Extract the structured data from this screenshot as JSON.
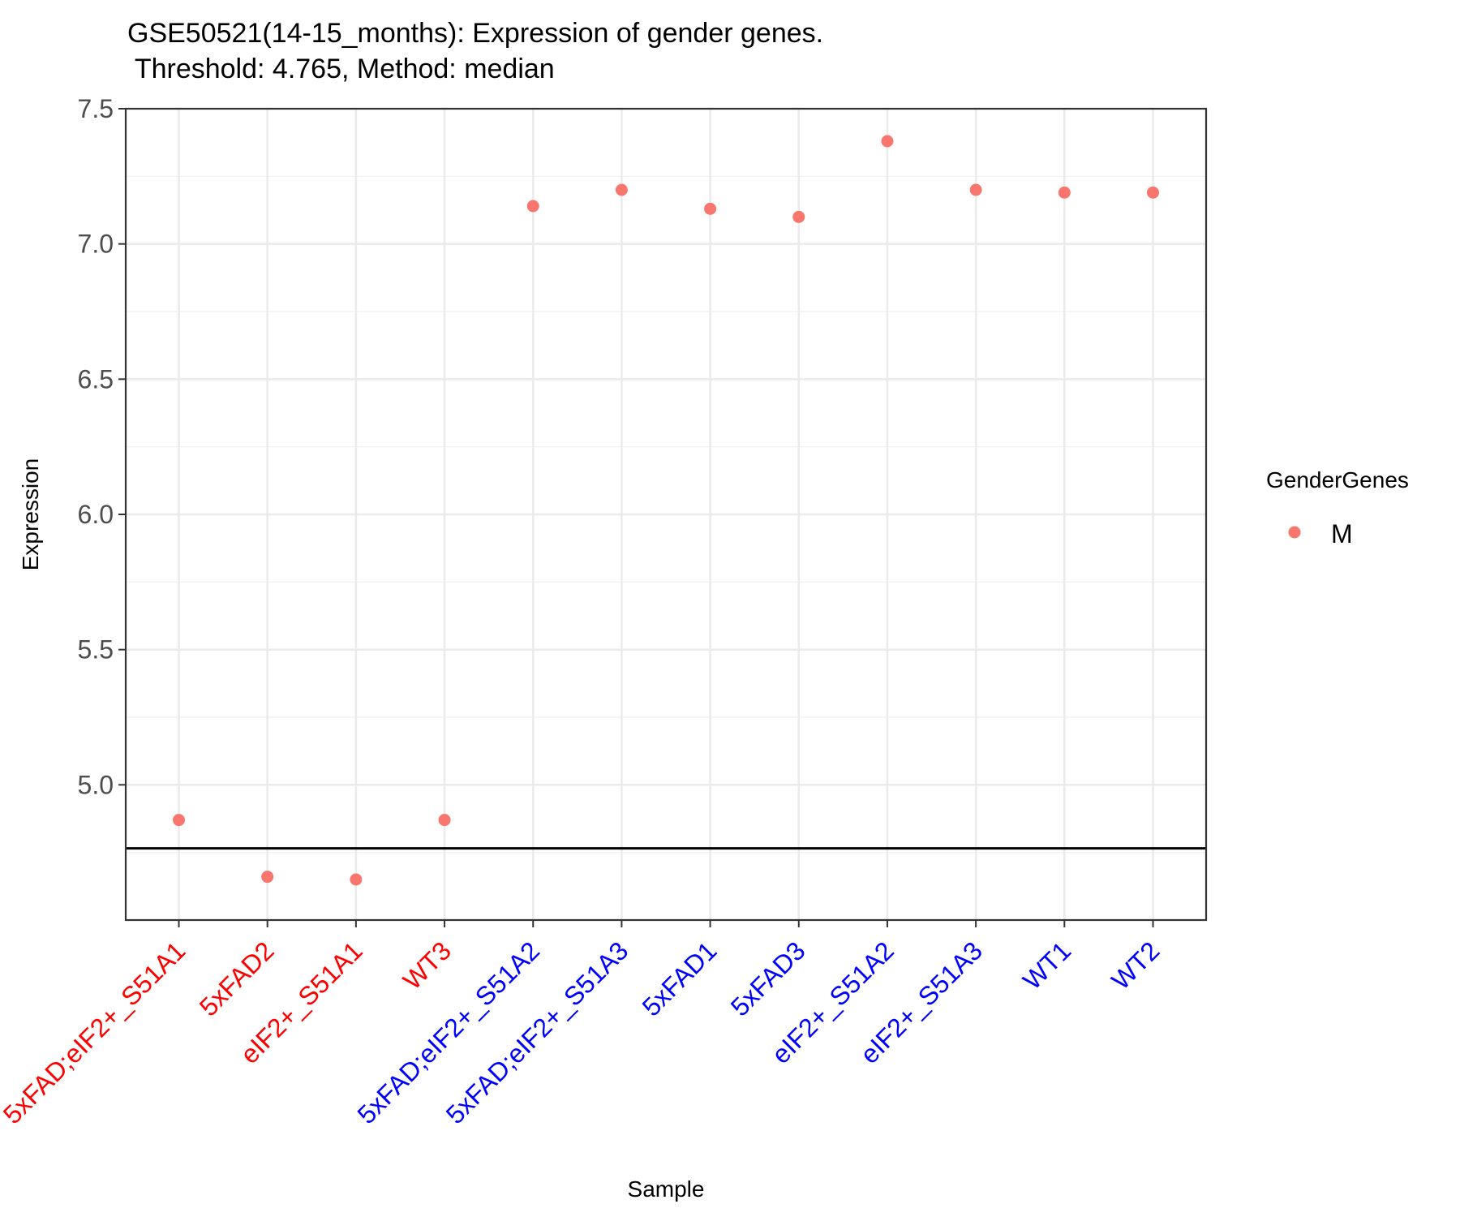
{
  "chart_data": {
    "type": "scatter",
    "title": "GSE50521(14-15_months): Expression of gender genes.",
    "subtitle": " Threshold: 4.765, Method: median",
    "xlabel": "Sample",
    "ylabel": "Expression",
    "ylim": [
      4.5,
      7.5
    ],
    "yticks": [
      "5.0",
      "5.5",
      "6.0",
      "6.5",
      "7.0",
      "7.5"
    ],
    "grid": true,
    "threshold": 4.765,
    "legend": {
      "title": "GenderGenes",
      "placement": "right",
      "entries": [
        {
          "label": "M",
          "color": "#F8766D"
        }
      ]
    },
    "categories": [
      "5xFAD;eIF2+_S51A1",
      "5xFAD2",
      "eIF2+_S51A1",
      "WT3",
      "5xFAD;eIF2+_S51A2",
      "5xFAD;eIF2+_S51A3",
      "5xFAD1",
      "5xFAD3",
      "eIF2+_S51A2",
      "eIF2+_S51A3",
      "WT1",
      "WT2"
    ],
    "category_colors": [
      "#FF0000",
      "#FF0000",
      "#FF0000",
      "#FF0000",
      "#0000FF",
      "#0000FF",
      "#0000FF",
      "#0000FF",
      "#0000FF",
      "#0000FF",
      "#0000FF",
      "#0000FF"
    ],
    "series": [
      {
        "name": "M",
        "color": "#F8766D",
        "values": [
          4.87,
          4.66,
          4.65,
          4.87,
          7.14,
          7.2,
          7.13,
          7.1,
          7.38,
          7.2,
          7.19,
          7.19
        ]
      }
    ]
  }
}
